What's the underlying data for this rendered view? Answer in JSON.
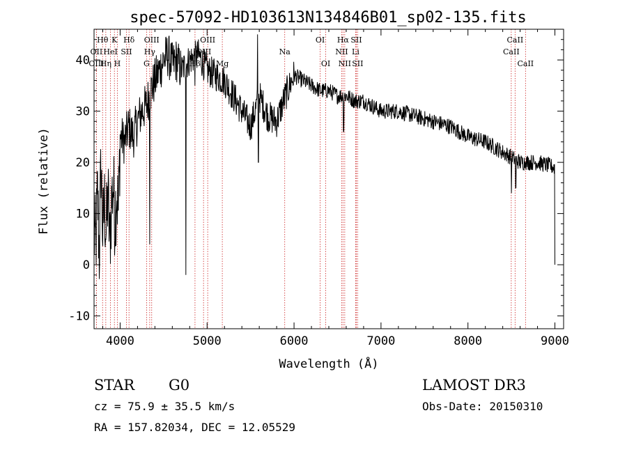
{
  "chart_data": {
    "type": "line",
    "title": "spec-57092-HD103613N134846B01_sp02-135.fits",
    "xlabel": "Wavelength (Å)",
    "ylabel": "Flux (relative)",
    "xlim": [
      3700,
      9100
    ],
    "ylim": [
      -12.5,
      46
    ],
    "x_ticks": [
      4000,
      5000,
      6000,
      7000,
      8000,
      9000
    ],
    "y_ticks": [
      -10,
      0,
      10,
      20,
      30,
      40
    ],
    "line_color": "#000000",
    "marker_color": "#cc2222",
    "spectrum_anchors": [
      [
        3700,
        6
      ],
      [
        3720,
        4
      ],
      [
        3740,
        14
      ],
      [
        3760,
        2
      ],
      [
        3780,
        20
      ],
      [
        3800,
        6
      ],
      [
        3820,
        12
      ],
      [
        3840,
        6
      ],
      [
        3860,
        14
      ],
      [
        3880,
        4
      ],
      [
        3900,
        12
      ],
      [
        3920,
        16
      ],
      [
        3940,
        9
      ],
      [
        3960,
        15
      ],
      [
        3980,
        10
      ],
      [
        4000,
        25
      ],
      [
        4050,
        24
      ],
      [
        4100,
        27
      ],
      [
        4150,
        25
      ],
      [
        4200,
        28
      ],
      [
        4250,
        30
      ],
      [
        4300,
        31
      ],
      [
        4350,
        34
      ],
      [
        4400,
        36
      ],
      [
        4450,
        38
      ],
      [
        4500,
        40
      ],
      [
        4550,
        41
      ],
      [
        4600,
        39
      ],
      [
        4650,
        40
      ],
      [
        4700,
        38
      ],
      [
        4800,
        40
      ],
      [
        4900,
        41
      ],
      [
        5000,
        38
      ],
      [
        5100,
        37
      ],
      [
        5200,
        36
      ],
      [
        5300,
        33
      ],
      [
        5400,
        30
      ],
      [
        5500,
        27
      ],
      [
        5600,
        33
      ],
      [
        5700,
        29
      ],
      [
        5800,
        28
      ],
      [
        5900,
        33
      ],
      [
        6000,
        37
      ],
      [
        6100,
        36
      ],
      [
        6200,
        35
      ],
      [
        6300,
        34
      ],
      [
        6400,
        34
      ],
      [
        6500,
        33
      ],
      [
        6600,
        33
      ],
      [
        6700,
        32
      ],
      [
        6800,
        32
      ],
      [
        6900,
        31
      ],
      [
        7000,
        30
      ],
      [
        7200,
        30
      ],
      [
        7400,
        29
      ],
      [
        7600,
        28
      ],
      [
        7800,
        27
      ],
      [
        8000,
        25
      ],
      [
        8200,
        24
      ],
      [
        8400,
        22
      ],
      [
        8600,
        20
      ],
      [
        8800,
        20
      ],
      [
        9000,
        19
      ]
    ],
    "spectrum_spikes": [
      [
        4340,
        4
      ],
      [
        4755,
        -2
      ],
      [
        4860,
        35
      ],
      [
        5580,
        45
      ],
      [
        5590,
        20
      ],
      [
        6570,
        26
      ],
      [
        8500,
        14
      ],
      [
        8550,
        15
      ],
      [
        8665,
        20
      ],
      [
        9000,
        0
      ]
    ],
    "line_markers": [
      {
        "label": "Hθ",
        "wave": 3798,
        "row": 1
      },
      {
        "label": "OII",
        "wave": 3727,
        "row": 2
      },
      {
        "label": "OIII",
        "wave": 3727,
        "row": 3
      },
      {
        "label": "Hη",
        "wave": 3835,
        "row": 3
      },
      {
        "label": "Hδ",
        "wave": 4102,
        "row": 1
      },
      {
        "label": "K",
        "wave": 3934,
        "row": 1
      },
      {
        "label": "HeI",
        "wave": 3889,
        "row": 2
      },
      {
        "label": "SII",
        "wave": 4072,
        "row": 2
      },
      {
        "label": "H",
        "wave": 3968,
        "row": 3
      },
      {
        "label": "OIII",
        "wave": 4363,
        "row": 1
      },
      {
        "label": "Hγ",
        "wave": 4340,
        "row": 2
      },
      {
        "label": "G",
        "wave": 4304,
        "row": 3
      },
      {
        "label": "OIII",
        "wave": 5007,
        "row": 1
      },
      {
        "label": "OIII",
        "wave": 4959,
        "row": 2
      },
      {
        "label": "Hβ",
        "wave": 4861,
        "row": 3
      },
      {
        "label": "Mg",
        "wave": 5175,
        "row": 3
      },
      {
        "label": "Na",
        "wave": 5893,
        "row": 2
      },
      {
        "label": "OI",
        "wave": 6300,
        "row": 1
      },
      {
        "label": "OI",
        "wave": 6364,
        "row": 3
      },
      {
        "label": "Hα",
        "wave": 6563,
        "row": 1
      },
      {
        "label": "SII",
        "wave": 6716,
        "row": 1
      },
      {
        "label": "NII",
        "wave": 6548,
        "row": 2
      },
      {
        "label": "Li",
        "wave": 6708,
        "row": 2
      },
      {
        "label": "NII",
        "wave": 6583,
        "row": 3
      },
      {
        "label": "SII",
        "wave": 6731,
        "row": 3
      },
      {
        "label": "CaII",
        "wave": 8542,
        "row": 1
      },
      {
        "label": "CaII",
        "wave": 8498,
        "row": 2
      },
      {
        "label": "CaII",
        "wave": 8662,
        "row": 3
      }
    ]
  },
  "info": {
    "class_label": "STAR",
    "subclass_label": "G0",
    "survey": "LAMOST DR3",
    "redshift_text": "cz = 75.9 ± 35.5 km/s",
    "obs_date_text": "Obs-Date: 20150310",
    "coords_text": "RA = 157.82034, DEC =  12.05529"
  }
}
